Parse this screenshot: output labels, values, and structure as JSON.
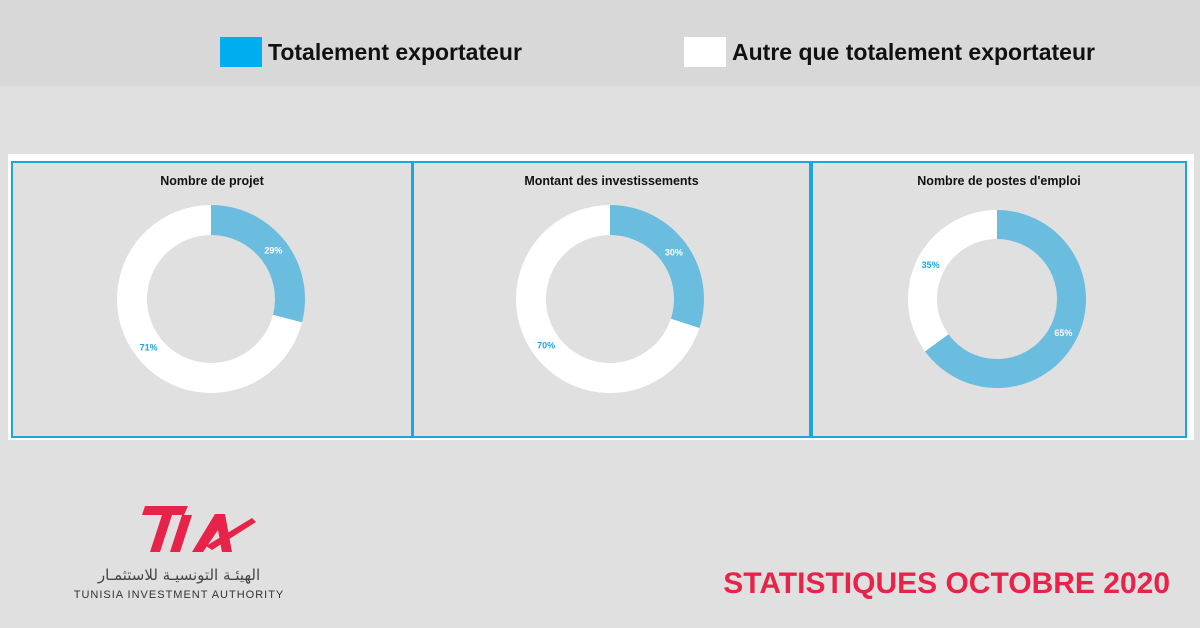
{
  "legend": {
    "items": [
      {
        "label": "Totalement exportateur",
        "color": "#00aeef"
      },
      {
        "label": "Autre que totalement exportateur",
        "color": "#ffffff"
      }
    ]
  },
  "colors": {
    "slice_primary": "#6bbde0",
    "slice_secondary": "#ffffff",
    "label_inside": "#ffffff",
    "label_outside": "#1aa7e0",
    "panel_border": "#1aa7e0",
    "footer": "#e8234a"
  },
  "chart_data": [
    {
      "type": "pie",
      "title": "Nombre de projet",
      "categories": [
        "Totalement exportateur",
        "Autre que totalement exportateur"
      ],
      "values": [
        29,
        71
      ],
      "value_labels": [
        "29%",
        "71%"
      ]
    },
    {
      "type": "pie",
      "title": "Montant des investissements",
      "categories": [
        "Totalement exportateur",
        "Autre que totalement exportateur"
      ],
      "values": [
        30,
        70
      ],
      "value_labels": [
        "30%",
        "70%"
      ]
    },
    {
      "type": "pie",
      "title": "Nombre de postes d'emploi",
      "categories": [
        "Totalement exportateur",
        "Autre que totalement exportateur"
      ],
      "values": [
        65,
        35
      ],
      "value_labels": [
        "65%",
        "35%"
      ]
    }
  ],
  "logo": {
    "mark": "TIA",
    "arabic": "الهيئـة التونسيـة للاستثمـار",
    "english": "TUNISIA INVESTMENT AUTHORITY"
  },
  "footer": {
    "title": "STATISTIQUES OCTOBRE 2020"
  }
}
